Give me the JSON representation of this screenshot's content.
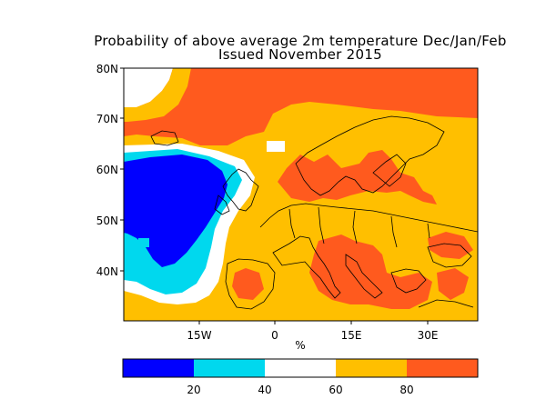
{
  "title": {
    "line1": "Probability of above average 2m temperature Dec/Jan/Feb",
    "line2": "Issued November 2015"
  },
  "map": {
    "lat_labels": [
      "80N",
      "70N",
      "60N",
      "50N",
      "40N"
    ],
    "lon_labels": [
      "15W",
      "0",
      "15E",
      "30E"
    ],
    "colors": {
      "land_coast": "#000000",
      "class_0_20": "#0000ff",
      "class_20_40": "#00d8ee",
      "class_40_60": "#ffffff",
      "class_60_80": "#ffbf00",
      "class_80_100": "#ff5a1e"
    }
  },
  "colorbar": {
    "unit_label": "%",
    "tick_labels": [
      "20",
      "40",
      "60",
      "80"
    ],
    "bins": [
      {
        "range": "0-20",
        "color": "#0000ff"
      },
      {
        "range": "20-40",
        "color": "#00d8ee"
      },
      {
        "range": "40-60",
        "color": "#ffffff"
      },
      {
        "range": "60-80",
        "color": "#ffbf00"
      },
      {
        "range": "80-100",
        "color": "#ff5a1e"
      }
    ]
  }
}
